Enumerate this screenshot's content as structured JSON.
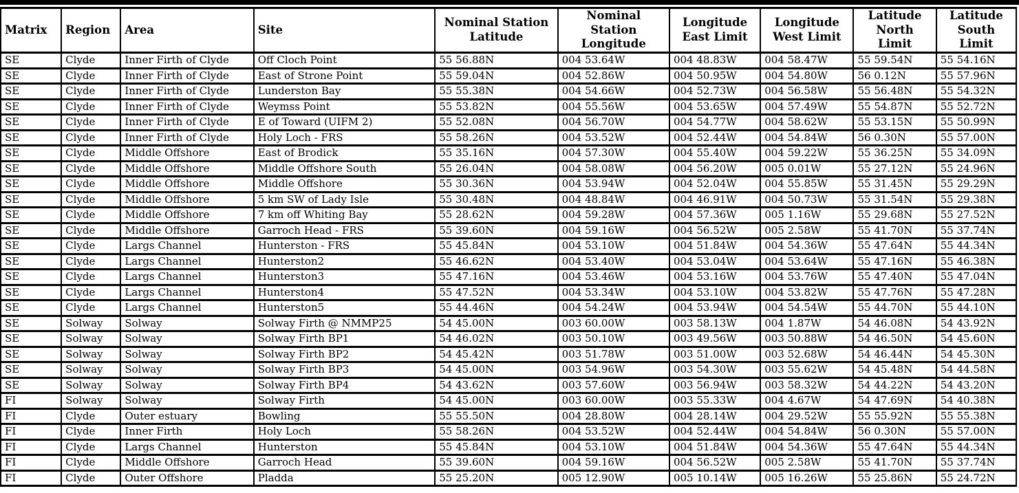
{
  "table": {
    "columns": [
      {
        "id": "matrix",
        "label": "Matrix",
        "align": "left"
      },
      {
        "id": "region",
        "label": "Region",
        "align": "left"
      },
      {
        "id": "area",
        "label": "Area",
        "align": "left"
      },
      {
        "id": "site",
        "label": "Site",
        "align": "left"
      },
      {
        "id": "nominal-station-latitude",
        "label": "Nominal Station\nLatitude",
        "align": "center"
      },
      {
        "id": "nominal-station-longitude",
        "label": "Nominal\nStation\nLongitude",
        "align": "center"
      },
      {
        "id": "longitude-east-limit",
        "label": "Longitude\nEast Limit",
        "align": "center"
      },
      {
        "id": "longitude-west-limit",
        "label": "Longitude\nWest Limit",
        "align": "center"
      },
      {
        "id": "latitude-north-limit",
        "label": "Latitude\nNorth\nLimit",
        "align": "center"
      },
      {
        "id": "latitude-south-limit",
        "label": "Latitude\nSouth\nLimit",
        "align": "center"
      }
    ],
    "rows": [
      [
        "SE",
        "Clyde",
        "Inner Firth of Clyde",
        "Off Cloch Point",
        "55 56.88N",
        "004 53.64W",
        "004 48.83W",
        "004 58.47W",
        "55 59.54N",
        "55 54.16N"
      ],
      [
        "SE",
        "Clyde",
        "Inner Firth of Clyde",
        "East of Strone Point",
        "55 59.04N",
        "004 52.86W",
        "004 50.95W",
        "004 54.80W",
        "56 0.12N",
        "55 57.96N"
      ],
      [
        "SE",
        "Clyde",
        "Inner Firth of Clyde",
        "Lunderston Bay",
        "55 55.38N",
        "004 54.66W",
        "004 52.73W",
        "004 56.58W",
        "55 56.48N",
        "55 54.32N"
      ],
      [
        "SE",
        "Clyde",
        "Inner Firth of Clyde",
        "Weymss Point",
        "55 53.82N",
        "004 55.56W",
        "004 53.65W",
        "004 57.49W",
        "55 54.87N",
        "55 52.72N"
      ],
      [
        "SE",
        "Clyde",
        "Inner Firth of Clyde",
        "E of Toward (UIFM 2)",
        "55 52.08N",
        "004 56.70W",
        "004 54.77W",
        "004 58.62W",
        "55 53.15N",
        "55 50.99N"
      ],
      [
        "SE",
        "Clyde",
        "Inner Firth of Clyde",
        "Holy Loch - FRS",
        "55 58.26N",
        "004 53.52W",
        "004 52.44W",
        "004 54.84W",
        "56 0.30N",
        "55 57.00N"
      ],
      [
        "SE",
        "Clyde",
        "Middle Offshore",
        "East of Brodick",
        "55 35.16N",
        "004 57.30W",
        "004 55.40W",
        "004 59.22W",
        "55 36.25N",
        "55 34.09N"
      ],
      [
        "SE",
        "Clyde",
        "Middle Offshore",
        "Middle Offshore South",
        "55 26.04N",
        "004 58.08W",
        "004 56.20W",
        "005 0.01W",
        "55 27.12N",
        "55 24.96N"
      ],
      [
        "SE",
        "Clyde",
        "Middle Offshore",
        "Middle Offshore",
        "55 30.36N",
        "004 53.94W",
        "004 52.04W",
        "004 55.85W",
        "55 31.45N",
        "55 29.29N"
      ],
      [
        "SE",
        "Clyde",
        "Middle Offshore",
        "5 km SW of Lady Isle",
        "55 30.48N",
        "004 48.84W",
        "004 46.91W",
        "004 50.73W",
        "55 31.54N",
        "55 29.38N"
      ],
      [
        "SE",
        "Clyde",
        "Middle Offshore",
        "7 km off Whiting Bay",
        "55 28.62N",
        "004 59.28W",
        "004 57.36W",
        "005 1.16W",
        "55 29.68N",
        "55 27.52N"
      ],
      [
        "SE",
        "Clyde",
        "Middle Offshore",
        "Garroch Head - FRS",
        "55 39.60N",
        "004 59.16W",
        "004 56.52W",
        "005 2.58W",
        "55 41.70N",
        "55 37.74N"
      ],
      [
        "SE",
        "Clyde",
        "Largs Channel",
        "Hunterston - FRS",
        "55 45.84N",
        "004 53.10W",
        "004 51.84W",
        "004 54.36W",
        "55 47.64N",
        "55 44.34N"
      ],
      [
        "SE",
        "Clyde",
        "Largs Channel",
        "Hunterston2",
        "55 46.62N",
        "004 53.40W",
        "004 53.04W",
        "004 53.64W",
        "55 47.16N",
        "55 46.38N"
      ],
      [
        "SE",
        "Clyde",
        "Largs Channel",
        "Hunterston3",
        "55 47.16N",
        "004 53.46W",
        "004 53.16W",
        "004 53.76W",
        "55 47.40N",
        "55 47.04N"
      ],
      [
        "SE",
        "Clyde",
        "Largs Channel",
        "Hunterston4",
        "55 47.52N",
        "004 53.34W",
        "004 53.10W",
        "004 53.82W",
        "55 47.76N",
        "55 47.28N"
      ],
      [
        "SE",
        "Clyde",
        "Largs Channel",
        "Hunterston5",
        "55 44.46N",
        "004 54.24W",
        "004 53.94W",
        "004 54.54W",
        "55 44.70N",
        "55 44.10N"
      ],
      [
        "SE",
        "Solway",
        "Solway",
        "Solway Firth @ NMMP25",
        "54 45.00N",
        "003 60.00W",
        "003 58.13W",
        "004 1.87W",
        "54 46.08N",
        "54 43.92N"
      ],
      [
        "SE",
        "Solway",
        "Solway",
        "Solway Firth BP1",
        "54 46.02N",
        "003 50.10W",
        "003 49.56W",
        "003 50.88W",
        "54 46.50N",
        "54 45.60N"
      ],
      [
        "SE",
        "Solway",
        "Solway",
        "Solway Firth BP2",
        "54 45.42N",
        "003 51.78W",
        "003 51.00W",
        "003 52.68W",
        "54 46.44N",
        "54 45.30N"
      ],
      [
        "SE",
        "Solway",
        "Solway",
        "Solway Firth BP3",
        "54 45.00N",
        "003 54.96W",
        "003 54.30W",
        "003 55.62W",
        "54 45.48N",
        "54 44.58N"
      ],
      [
        "SE",
        "Solway",
        "Solway",
        "Solway Firth BP4",
        "54 43.62N",
        "003 57.60W",
        "003 56.94W",
        "003 58.32W",
        "54 44.22N",
        "54 43.20N"
      ],
      [
        "FI",
        "Solway",
        "Solway",
        "Solway Firth",
        "54 45.00N",
        "003 60.00W",
        "003 55.33W",
        "004 4.67W",
        "54 47.69N",
        "54 40.38N"
      ],
      [
        "FI",
        "Clyde",
        "Outer estuary",
        "Bowling",
        "55 55.50N",
        "004 28.80W",
        "004 28.14W",
        "004 29.52W",
        "55 55.92N",
        "55 55.38N"
      ],
      [
        "FI",
        "Clyde",
        "Inner Firth",
        "Holy Loch",
        "55 58.26N",
        "004 53.52W",
        "004 52.44W",
        "004 54.84W",
        "56 0.30N",
        "55 57.00N"
      ],
      [
        "FI",
        "Clyde",
        "Largs Channel",
        "Hunterston",
        "55 45.84N",
        "004 53.10W",
        "004 51.84W",
        "004 54.36W",
        "55 47.64N",
        "55 44.34N"
      ],
      [
        "FI",
        "Clyde",
        "Middle Offshore",
        "Garroch Head",
        "55 39.60N",
        "004 59.16W",
        "004 56.52W",
        "005 2.58W",
        "55 41.70N",
        "55 37.74N"
      ],
      [
        "FI",
        "Clyde",
        "Outer Offshore",
        "Pladda",
        "55 25.20N",
        "005 12.90W",
        "005 10.14W",
        "005 16.26W",
        "55 25.86N",
        "55 24.72N"
      ]
    ]
  }
}
